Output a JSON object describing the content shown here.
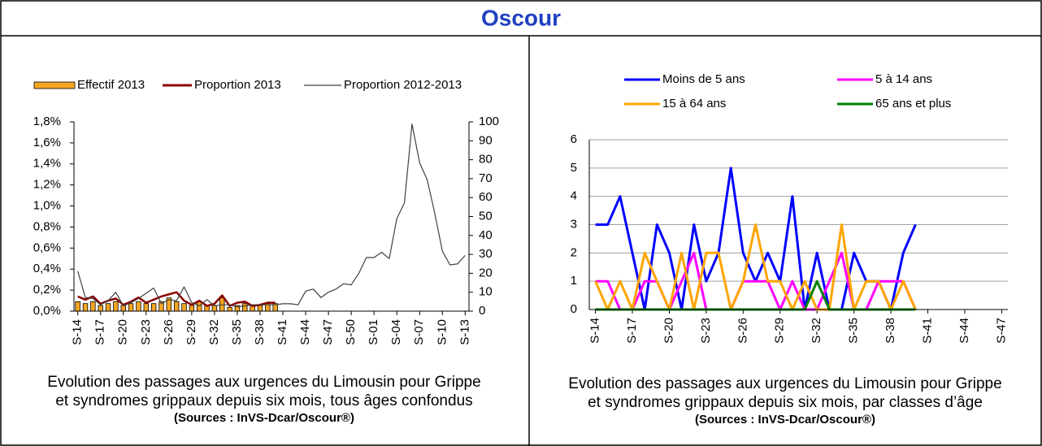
{
  "header": {
    "title": "Oscour"
  },
  "chart_data": [
    {
      "type": "line",
      "categories": [
        "S-14",
        null,
        null,
        "S-17",
        null,
        null,
        "S-20",
        null,
        null,
        "S-23",
        null,
        null,
        "S-26",
        null,
        null,
        "S-29",
        null,
        null,
        "S-32",
        null,
        null,
        "S-35",
        null,
        null,
        "S-38",
        null,
        null,
        "S-41",
        null,
        null,
        "S-44",
        null,
        null,
        "S-47",
        null,
        null,
        "S-50",
        null,
        null,
        "S-01",
        null,
        null,
        "S-04",
        null,
        null,
        "S-07",
        null,
        null,
        "S-10",
        null,
        null,
        "S-13"
      ],
      "ylim": [
        0,
        1.8
      ],
      "yticks": [
        {
          "value": 0,
          "label": "0,0%"
        },
        {
          "value": 0.2,
          "label": "0,2%"
        },
        {
          "value": 0.4,
          "label": "0,4%"
        },
        {
          "value": 0.6,
          "label": "0,6%"
        },
        {
          "value": 0.8,
          "label": "0,8%"
        },
        {
          "value": 1.0,
          "label": "1,0%"
        },
        {
          "value": 1.2,
          "label": "1,2%"
        },
        {
          "value": 1.4,
          "label": "1,4%"
        },
        {
          "value": 1.6,
          "label": "1,6%"
        },
        {
          "value": 1.8,
          "label": "1,8%"
        }
      ],
      "y2lim": [
        0,
        100
      ],
      "y2ticks": [
        0,
        10,
        20,
        30,
        40,
        50,
        60,
        70,
        80,
        90,
        100
      ],
      "grid": false,
      "series": [
        {
          "name": "Effectif 2013",
          "type": "bar",
          "axis": "y2",
          "color": "#f5a623",
          "values": [
            5,
            4,
            5,
            3,
            4,
            5,
            3,
            4,
            5,
            4,
            4,
            5,
            7,
            5,
            4,
            3,
            5,
            3,
            3,
            7,
            2,
            3,
            4,
            3,
            3,
            4,
            4,
            null,
            null,
            null,
            null,
            null,
            null,
            null,
            null,
            null,
            null,
            null,
            null,
            null,
            null,
            null,
            null,
            null,
            null,
            null,
            null,
            null,
            null,
            null,
            null,
            null
          ]
        },
        {
          "name": "Proportion 2013",
          "color": "#8b0000",
          "values": [
            0.14,
            0.11,
            0.14,
            0.07,
            0.1,
            0.12,
            0.06,
            0.09,
            0.13,
            0.08,
            0.11,
            0.14,
            0.16,
            0.18,
            0.1,
            0.06,
            0.1,
            0.05,
            0.07,
            0.15,
            0.05,
            0.08,
            0.09,
            0.05,
            0.06,
            0.08,
            0.08,
            null,
            null,
            null,
            null,
            null,
            null,
            null,
            null,
            null,
            null,
            null,
            null,
            null,
            null,
            null,
            null,
            null,
            null,
            null,
            null,
            null,
            null,
            null,
            null,
            null
          ]
        },
        {
          "name": "Proportion 2012-2013",
          "color": "#404040",
          "values": [
            0.38,
            0.13,
            0.12,
            0.06,
            0.1,
            0.18,
            0.05,
            0.08,
            0.12,
            0.17,
            0.22,
            0.07,
            0.11,
            0.1,
            0.23,
            0.08,
            0.05,
            0.11,
            0.05,
            0.06,
            0.06,
            0.04,
            0.05,
            0.06,
            0.06,
            0.06,
            0.06,
            0.07,
            0.07,
            0.06,
            0.19,
            0.21,
            0.13,
            0.18,
            0.21,
            0.26,
            0.25,
            0.36,
            0.51,
            0.51,
            0.56,
            0.5,
            0.88,
            1.03,
            1.78,
            1.41,
            1.25,
            0.93,
            0.57,
            0.44,
            0.45,
            0.53
          ]
        }
      ],
      "caption": [
        "Evolution des passages aux urgences  du Limousin pour Grippe",
        "et syndromes grippaux  depuis six mois, tous âges confondus"
      ],
      "source": "(Sources : InVS-Dcar/Oscour®)"
    },
    {
      "type": "line",
      "categories": [
        "S-14",
        null,
        null,
        "S-17",
        null,
        null,
        "S-20",
        null,
        null,
        "S-23",
        null,
        null,
        "S-26",
        null,
        null,
        "S-29",
        null,
        null,
        "S-32",
        null,
        null,
        "S-35",
        null,
        null,
        "S-38",
        null,
        null,
        "S-41",
        null,
        null,
        "S-44",
        null,
        null,
        "S-47"
      ],
      "ylim": [
        0,
        6
      ],
      "yticks": [
        0,
        1,
        2,
        3,
        4,
        5,
        6
      ],
      "grid": true,
      "series": [
        {
          "name": "Moins de 5 ans",
          "color": "#0000ff",
          "values": [
            3,
            3,
            4,
            2,
            0,
            3,
            2,
            0,
            3,
            1,
            2,
            5,
            2,
            1,
            2,
            1,
            4,
            0,
            2,
            0,
            0,
            2,
            1,
            1,
            0,
            2,
            3,
            null,
            null,
            null,
            null,
            null,
            null,
            null
          ]
        },
        {
          "name": "5 à 14 ans",
          "color": "#ff00ff",
          "values": [
            1,
            1,
            0,
            0,
            1,
            1,
            0,
            1,
            2,
            0,
            0,
            0,
            1,
            1,
            1,
            0,
            1,
            0,
            0,
            1,
            2,
            0,
            0,
            1,
            1,
            1,
            0,
            null,
            null,
            null,
            null,
            null,
            null,
            null
          ]
        },
        {
          "name": "15 à 64 ans",
          "color": "#ffa500",
          "values": [
            1,
            0,
            1,
            0,
            2,
            1,
            0,
            2,
            0,
            2,
            2,
            0,
            1,
            3,
            1,
            1,
            0,
            1,
            0,
            0,
            3,
            0,
            1,
            1,
            0,
            1,
            0,
            null,
            null,
            null,
            null,
            null,
            null,
            null
          ]
        },
        {
          "name": "65 ans et plus",
          "color": "#008000",
          "values": [
            0,
            0,
            0,
            0,
            0,
            0,
            0,
            0,
            0,
            0,
            0,
            0,
            0,
            0,
            0,
            0,
            0,
            0,
            1,
            0,
            0,
            0,
            0,
            0,
            0,
            0,
            0,
            null,
            null,
            null,
            null,
            null,
            null,
            null
          ]
        }
      ],
      "caption": [
        "Evolution des passages aux urgences du Limousin pour Grippe",
        "et syndromes grippaux  depuis six mois, par classes d’âge"
      ],
      "source": "(Sources : InVS-Dcar/Oscour®)"
    }
  ]
}
